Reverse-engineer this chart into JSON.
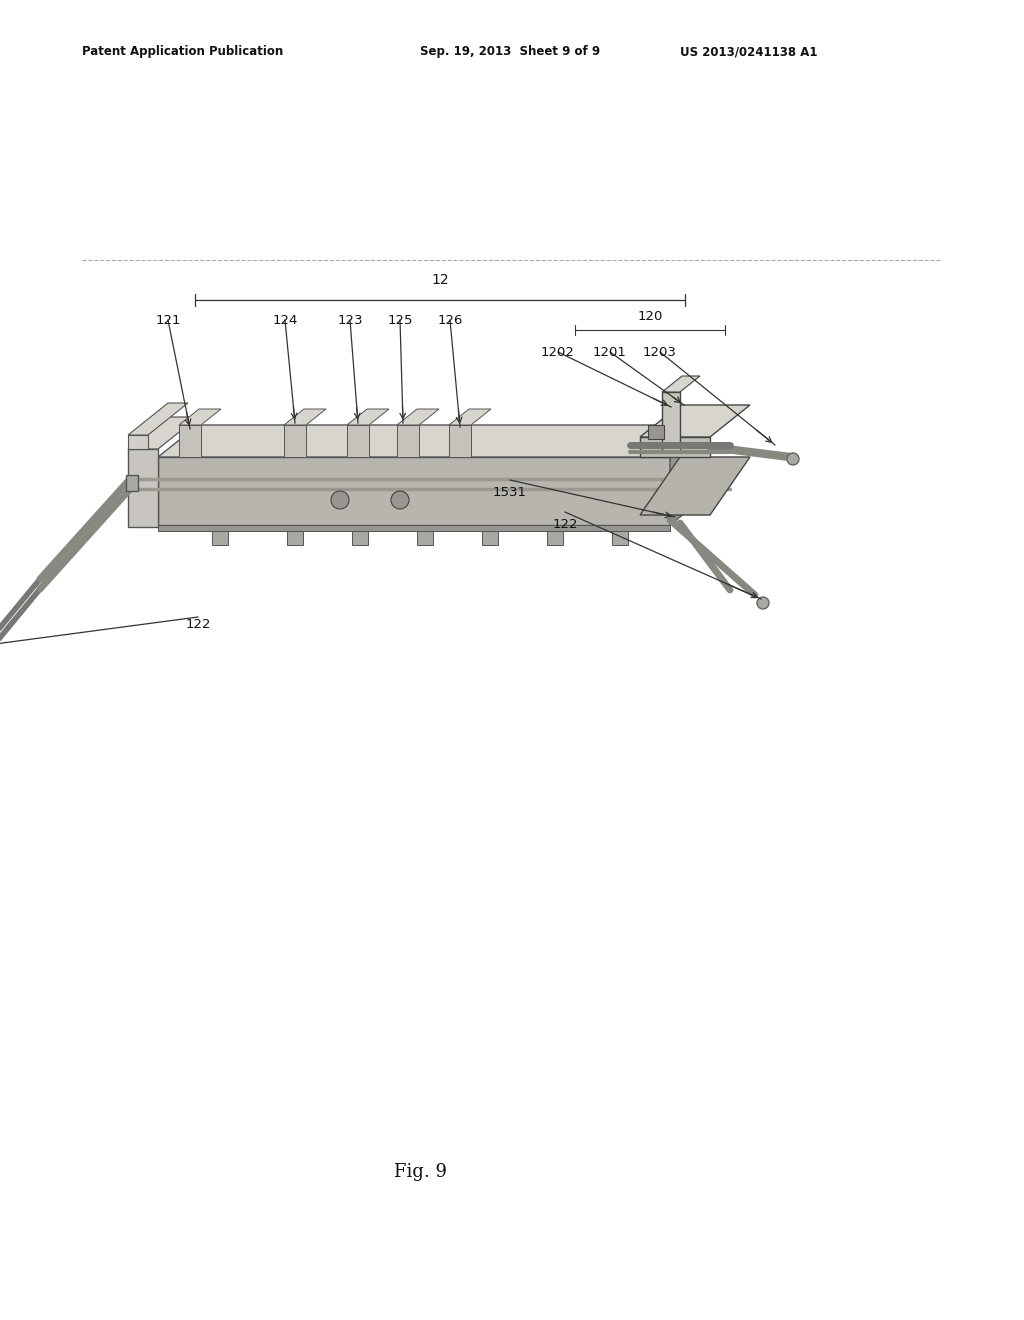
{
  "bg_color": "#ffffff",
  "header_left": "Patent Application Publication",
  "header_mid": "Sep. 19, 2013  Sheet 9 of 9",
  "header_right": "US 2013/0241138 A1",
  "fig_label": "Fig. 9",
  "line_color": "#555555",
  "light_gray": "#d8d5ce",
  "mid_gray": "#b8b5ae",
  "dark_gray": "#989590",
  "edge_color": "#444444"
}
